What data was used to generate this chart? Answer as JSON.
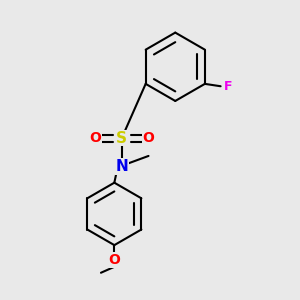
{
  "background_color": "#e9e9e9",
  "bond_color": "#000000",
  "bond_width": 1.5,
  "figsize": [
    3.0,
    3.0
  ],
  "dpi": 100,
  "atoms": {
    "S": {
      "color": "#cccc00"
    },
    "O": {
      "color": "#ff0000"
    },
    "N": {
      "color": "#0000ee"
    },
    "F": {
      "color": "#ee00ee"
    }
  }
}
